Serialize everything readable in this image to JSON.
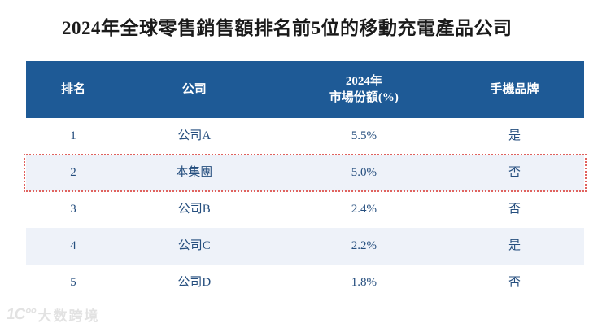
{
  "page": {
    "title": "2024年全球零售銷售額排名前5位的移動充電產品公司"
  },
  "table": {
    "columns": [
      {
        "key": "rank",
        "label": "排名"
      },
      {
        "key": "company",
        "label": "公司"
      },
      {
        "key": "share",
        "label_line1": "2024年",
        "label_line2": "市場份額(%)"
      },
      {
        "key": "brand",
        "label": "手機品牌"
      }
    ],
    "rows": [
      {
        "rank": "1",
        "company": "公司A",
        "share": "5.5%",
        "brand": "是",
        "highlight": false
      },
      {
        "rank": "2",
        "company": "本集團",
        "share": "5.0%",
        "brand": "否",
        "highlight": true
      },
      {
        "rank": "3",
        "company": "公司B",
        "share": "2.4%",
        "brand": "否",
        "highlight": false
      },
      {
        "rank": "4",
        "company": "公司C",
        "share": "2.2%",
        "brand": "是",
        "highlight": false
      },
      {
        "rank": "5",
        "company": "公司D",
        "share": "1.8%",
        "brand": "否",
        "highlight": false
      }
    ]
  },
  "watermark": {
    "logo": "1C°°",
    "text": "大数跨境"
  },
  "colors": {
    "header_bg": "#1e5a96",
    "header_text": "#ffffff",
    "body_text": "#254e7e",
    "alt_row_bg": "#eef2f9",
    "highlight_border": "#e0625e",
    "watermark": "#e2e2e2"
  }
}
